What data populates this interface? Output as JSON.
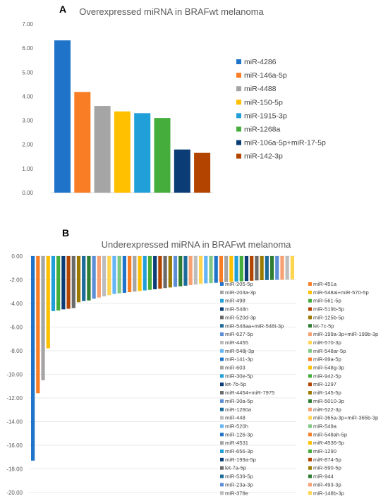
{
  "chart_data": [
    {
      "type": "bar",
      "panel_label": "A",
      "title": "Overexpressed miRNA in BRAFwt melanoma",
      "ylim": [
        0,
        7
      ],
      "y_ticks": [
        "0.00",
        "1.00",
        "2.00",
        "3.00",
        "4.00",
        "5.00",
        "6.00",
        "7.00"
      ],
      "grid": false,
      "legend_position": "right",
      "series": [
        {
          "name": "miR-4286",
          "value": 6.32,
          "color": "#1f74c9"
        },
        {
          "name": "miR-146a-5p",
          "value": 4.18,
          "color": "#f97d24"
        },
        {
          "name": "miR-4488",
          "value": 3.6,
          "color": "#a5a5a5"
        },
        {
          "name": "miR-150-5p",
          "value": 3.37,
          "color": "#ffc000"
        },
        {
          "name": "miR-1915-3p",
          "value": 3.3,
          "color": "#219fd8"
        },
        {
          "name": "miR-1268a",
          "value": 3.1,
          "color": "#44ad3c"
        },
        {
          "name": "miR-106a-5p+miR-17-5p",
          "value": 1.79,
          "color": "#0b3c75"
        },
        {
          "name": "miR-142-3p",
          "value": 1.65,
          "color": "#b24400"
        }
      ]
    },
    {
      "type": "bar",
      "panel_label": "B",
      "title": "Underexpressed miRNA in BRAFwt melanoma",
      "ylim": [
        -20,
        0
      ],
      "y_ticks": [
        "0.00",
        "-2.00",
        "-4.00",
        "-6.00",
        "-8.00",
        "-10.00",
        "-12.00",
        "-14.00",
        "-16.00",
        "-18.00",
        "-20.00"
      ],
      "grid": true,
      "legend_position": "bottom-right",
      "series": [
        {
          "name": "miR-205-5p",
          "value": -17.3,
          "color": "#1f74c9"
        },
        {
          "name": "miR-451a",
          "value": -11.6,
          "color": "#f97d24"
        },
        {
          "name": "miR-203a-3p",
          "value": -10.5,
          "color": "#a5a5a5"
        },
        {
          "name": "miR-548ai+miR-570-5p",
          "value": -7.8,
          "color": "#ffc000"
        },
        {
          "name": "miR-498",
          "value": -4.65,
          "color": "#219fd8"
        },
        {
          "name": "miR-561-5p",
          "value": -4.6,
          "color": "#44ad3c"
        },
        {
          "name": "miR-548n",
          "value": -4.5,
          "color": "#0b3c75"
        },
        {
          "name": "miR-519b-5p",
          "value": -4.45,
          "color": "#b24400"
        },
        {
          "name": "miR-520d-3p",
          "value": -4.4,
          "color": "#6a6a6a"
        },
        {
          "name": "miR-125b-5p",
          "value": -3.9,
          "color": "#9c7a00"
        },
        {
          "name": "miR-548aa+miR-548t-3p",
          "value": -3.8,
          "color": "#1d6b9a"
        },
        {
          "name": "let-7c-5p",
          "value": -3.75,
          "color": "#2e7d32"
        },
        {
          "name": "miR-627-5p",
          "value": -3.6,
          "color": "#5b8ed6"
        },
        {
          "name": "miR-199a-3p+miR-199b-3p",
          "value": -3.5,
          "color": "#f7a072"
        },
        {
          "name": "miR-4455",
          "value": -3.4,
          "color": "#bdbdbd"
        },
        {
          "name": "miR-570-3p",
          "value": -3.3,
          "color": "#ffd54f"
        },
        {
          "name": "miR-548j-3p",
          "value": -3.2,
          "color": "#64b5f6"
        },
        {
          "name": "miR-548ar-5p",
          "value": -3.15,
          "color": "#81c784"
        },
        {
          "name": "miR-141-3p",
          "value": -3.1,
          "color": "#1f74c9"
        },
        {
          "name": "miR-99a-5p",
          "value": -3.05,
          "color": "#f97d24"
        },
        {
          "name": "miR-603",
          "value": -3.0,
          "color": "#a5a5a5"
        },
        {
          "name": "miR-548g-3p",
          "value": -2.95,
          "color": "#ffc000"
        },
        {
          "name": "miR-30e-5p",
          "value": -2.9,
          "color": "#219fd8"
        },
        {
          "name": "miR-942-5p",
          "value": -2.85,
          "color": "#44ad3c"
        },
        {
          "name": "let-7b-5p",
          "value": -2.8,
          "color": "#0b3c75"
        },
        {
          "name": "miR-1297",
          "value": -2.75,
          "color": "#b24400"
        },
        {
          "name": "miR-4454+miR-7975",
          "value": -2.7,
          "color": "#6a6a6a"
        },
        {
          "name": "miR-145-5p",
          "value": -2.65,
          "color": "#9c7a00"
        },
        {
          "name": "miR-30a-5p",
          "value": -2.6,
          "color": "#5b8ed6"
        },
        {
          "name": "miR-5010-3p",
          "value": -2.55,
          "color": "#2e7d32"
        },
        {
          "name": "miR-1260a",
          "value": -2.5,
          "color": "#1d6b9a"
        },
        {
          "name": "miR-522-3p",
          "value": -2.45,
          "color": "#f7a072"
        },
        {
          "name": "miR-448",
          "value": -2.4,
          "color": "#bdbdbd"
        },
        {
          "name": "miR-365a-3p+miR-365b-3p",
          "value": -2.35,
          "color": "#ffd54f"
        },
        {
          "name": "miR-520h",
          "value": -2.3,
          "color": "#64b5f6"
        },
        {
          "name": "miR-549a",
          "value": -2.28,
          "color": "#81c784"
        },
        {
          "name": "miR-126-3p",
          "value": -2.25,
          "color": "#1f74c9"
        },
        {
          "name": "miR-548ah-5p",
          "value": -2.22,
          "color": "#f97d24"
        },
        {
          "name": "miR-4531",
          "value": -2.2,
          "color": "#a5a5a5"
        },
        {
          "name": "miR-4536-5p",
          "value": -2.18,
          "color": "#ffc000"
        },
        {
          "name": "miR-656-3p",
          "value": -2.15,
          "color": "#219fd8"
        },
        {
          "name": "miR-1290",
          "value": -2.13,
          "color": "#44ad3c"
        },
        {
          "name": "miR-199a-5p",
          "value": -2.1,
          "color": "#0b3c75"
        },
        {
          "name": "miR-874-5p",
          "value": -2.08,
          "color": "#b24400"
        },
        {
          "name": "let-7a-5p",
          "value": -2.05,
          "color": "#6a6a6a"
        },
        {
          "name": "miR-590-5p",
          "value": -2.03,
          "color": "#9c7a00"
        },
        {
          "name": "miR-539-5p",
          "value": -2.02,
          "color": "#1d6b9a"
        },
        {
          "name": "miR-944",
          "value": -2.01,
          "color": "#2e7d32"
        },
        {
          "name": "miR-23a-3p",
          "value": -2.0,
          "color": "#5b8ed6"
        },
        {
          "name": "miR-493-3p",
          "value": -1.99,
          "color": "#f7a072"
        },
        {
          "name": "miR-378e",
          "value": -1.98,
          "color": "#bdbdbd"
        },
        {
          "name": "miR-148b-3p",
          "value": -1.97,
          "color": "#ffd54f"
        }
      ]
    }
  ]
}
